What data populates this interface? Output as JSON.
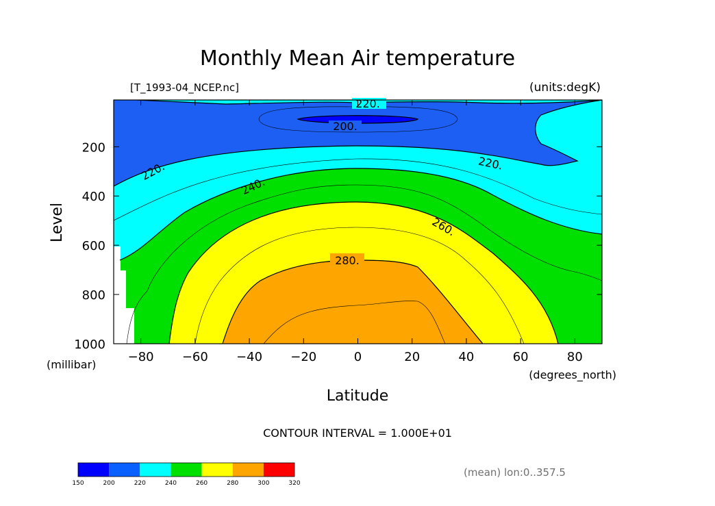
{
  "chart_data": {
    "type": "contour",
    "title": "Monthly Mean Air temperature",
    "file_label": "[T_1993-04_NCEP.nc]",
    "units_label": "(units:degK)",
    "xlabel": "Latitude",
    "x_units": "(degrees_north)",
    "ylabel": "Level",
    "y_units": "(millibar)",
    "xlim": [
      -90,
      90
    ],
    "ylim": [
      1000,
      10
    ],
    "x_ticks": [
      -80,
      -60,
      -40,
      -20,
      0,
      20,
      40,
      60,
      80
    ],
    "x_tick_labels": [
      "−80",
      "−60",
      "−40",
      "−20",
      "0",
      "20",
      "40",
      "60",
      "80"
    ],
    "y_ticks": [
      200,
      400,
      600,
      800,
      1000
    ],
    "y_tick_labels": [
      "200",
      "400",
      "600",
      "800",
      "1000"
    ],
    "contour_interval": "CONTOUR INTERVAL = 1.000E+01",
    "contour_labels": [
      "220.",
      "200.",
      "220.",
      "220.",
      "240.",
      "260.",
      "280."
    ],
    "footer_note": "(mean) lon:0..357.5",
    "colorbar": {
      "levels": [
        "150",
        "200",
        "220",
        "240",
        "260",
        "280",
        "300",
        "320"
      ],
      "colors": [
        "#0000ff",
        "#0a5fff",
        "#00ffff",
        "#00e000",
        "#ffff00",
        "#ffa500",
        "#ff0000"
      ]
    },
    "fill_colors": {
      "200": "#0000ff",
      "220": "#1c5ff2",
      "240": "#00ffff",
      "260": "#00e000",
      "280": "#ffff00",
      "300": "#ffa500"
    }
  }
}
